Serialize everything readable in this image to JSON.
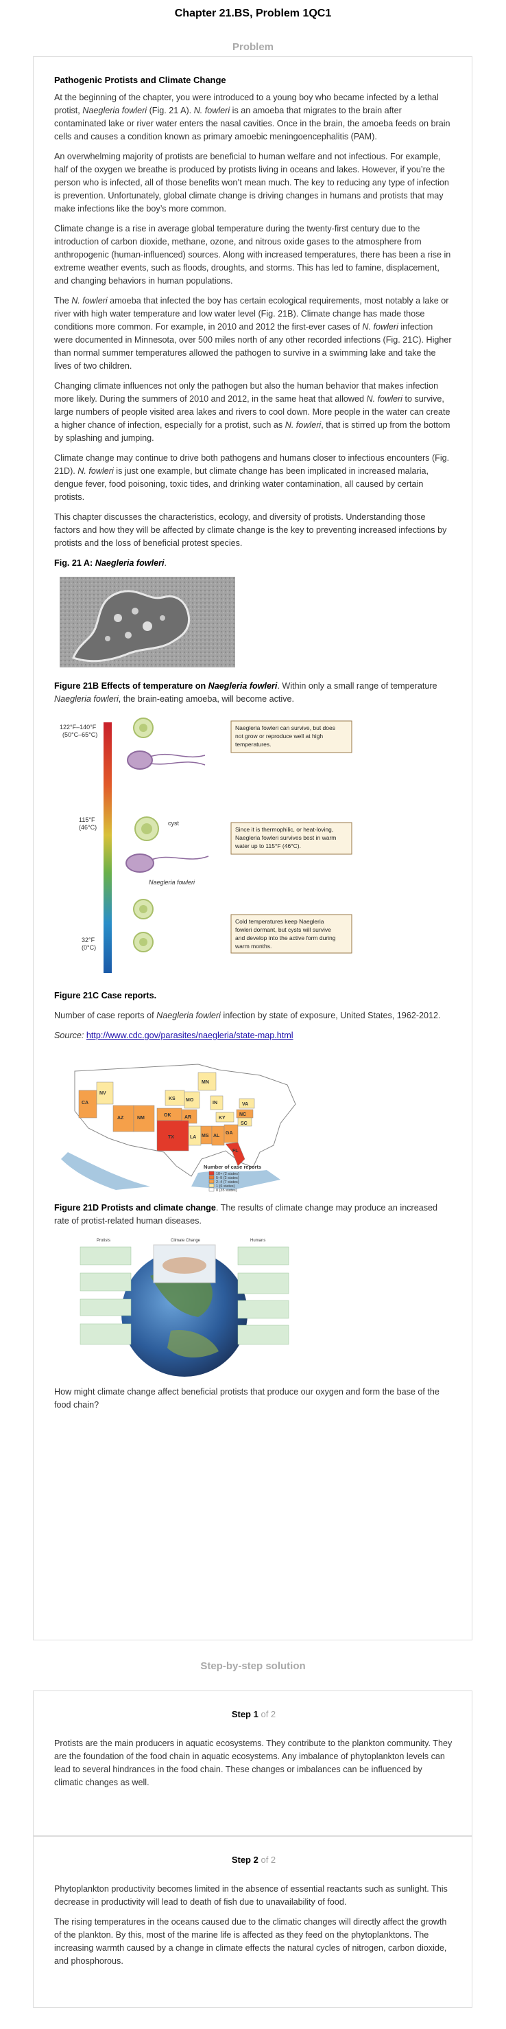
{
  "header": {
    "title": "Chapter 21.BS, Problem 1QC1"
  },
  "problem": {
    "section_label": "Problem",
    "title": "Pathogenic Protists and Climate Change",
    "p1": [
      "At the beginning of the chapter, you were introduced to a young boy who became infected by a lethal protist, ",
      "Naegleria fowleri",
      " (Fig. 21 A). ",
      "N. fowleri",
      " is an amoeba that migrates to the brain after contaminated lake or river water enters the nasal cavities. Once in the brain, the amoeba feeds on brain cells and causes a condition known as primary amoebic meningoencephalitis (PAM)."
    ],
    "p2": "An overwhelming majority of protists are beneficial to human welfare and not infectious. For example, half of the oxygen we breathe is produced by protists living in oceans and lakes. However, if you’re the person who is infected, all of those benefits won’t mean much. The key to reducing any type of infection is prevention. Unfortunately, global climate change is driving changes in humans and protists that may make infections like the boy’s more common.",
    "p3": "Climate change is a rise in average global temperature during the twenty-first century due to the introduction of carbon dioxide, methane, ozone, and nitrous oxide gases to the atmosphere from anthropogenic (human-influenced) sources. Along with increased temperatures, there has been a rise in extreme weather events, such as floods, droughts, and storms. This has led to famine, displacement, and changing behaviors in human populations.",
    "p4": [
      "The ",
      "N. fowleri",
      " amoeba that infected the boy has certain ecological requirements, most notably a lake or river with high water temperature and low water level (Fig. 21B). Climate change has made those conditions more common. For example, in 2010 and 2012 the first-ever cases of ",
      "N. fowleri",
      " infection were documented in Minnesota, over 500 miles north of any other recorded infections (Fig. 21C). Higher than normal summer temperatures allowed the pathogen to survive in a swimming lake and take the lives of two children."
    ],
    "p5": [
      "Changing climate influences not only the pathogen but also the human behavior that makes infection more likely. During the summers of 2010 and 2012, in the same heat that allowed ",
      "N. fowleri",
      " to survive, large numbers of people visited area lakes and rivers to cool down. More people in the water can create a higher chance of infection, especially for a protist, such as ",
      "N. fowleri",
      ", that is stirred up from the bottom by splashing and jumping."
    ],
    "p6": [
      "Climate change may continue to drive both pathogens and humans closer to infectious encounters (Fig. 21D). ",
      "N. fowleri",
      " is just one example, but climate change has been implicated in increased malaria, dengue fever, food poisoning, toxic tides, and drinking water contamination, all caused by certain protists."
    ],
    "p7": "This chapter discusses the characteristics, ecology, and diversity of protists. Understanding those factors and how they will be affected by climate change is the key to preventing increased infections by protists and the loss of beneficial protest species.",
    "figA_caption": [
      "Fig. 21 A: ",
      "Naegleria fowleri",
      "."
    ],
    "figB_caption": [
      "Figure 21B Effects of temperature on ",
      "Naegleria fowleri",
      ". Within only a small range of temperature ",
      "Naegleria fowleri",
      ", the brain-eating amoeba, will become active."
    ],
    "figB": {
      "temp_top": "122°F–140°F",
      "temp_top_c": "(50°C–65°C)",
      "temp_mid": "115°F",
      "temp_mid_c": "(46°C)",
      "temp_low": "32°F",
      "temp_low_c": "(0°C)",
      "label_cyst": "cyst",
      "label_species": "Naegleria fowleri",
      "box1": [
        "Naegleria fowleri can survive, but does",
        "not grow or reproduce well at high",
        "temperatures."
      ],
      "box2": [
        "Since it is thermophilic, or heat-loving,",
        "Naegleria fowleri survives best in warm",
        "water up to 115°F (46°C)."
      ],
      "box3": [
        "Cold temperatures keep Naegleria",
        "fowleri dormant, but cysts will survive",
        "and develop into the active form during",
        "warm months."
      ]
    },
    "figC_title": "Figure 21C Case reports.",
    "figC_caption": [
      "Number of case reports of ",
      "Naegleria fowleri",
      " infection by state of exposure, United States, 1962-2012."
    ],
    "figC_source_label": "Source:",
    "figC_source_link": "http://www.cdc.gov/parasites/naegleria/state-map.html",
    "figC_map": {
      "states": [
        "MN",
        "NV",
        "CA",
        "AZ",
        "NM",
        "KS",
        "MO",
        "IN",
        "VA",
        "NC",
        "SC",
        "OK",
        "AR",
        "KY",
        "TX",
        "LA",
        "MS",
        "AL",
        "GA",
        "FL"
      ],
      "legend_title": "Number of case reports",
      "legend": [
        "10+ (2 states)",
        "5–9 (2 states)",
        "2–4 (7 states)",
        "1 (6 states)",
        "0 (35 states)"
      ]
    },
    "figD_caption": [
      "Figure 21D Protists and climate change",
      ". The results of climate change may produce an increased rate of protist-related human diseases."
    ],
    "figD": {
      "col_left": "Protists",
      "col_mid": "Climate Change",
      "col_right": "Humans"
    },
    "question": "How might climate change affect beneficial protists that produce our oxygen and form the base of the food chain?"
  },
  "solution": {
    "section_label": "Step-by-step solution",
    "steps": [
      {
        "label": "Step 1",
        "of": "of 2",
        "text": "Protists are the main producers in aquatic ecosystems. They contribute to the plankton community. They are the foundation of the food chain in aquatic ecosystems. Any imbalance of phytoplankton levels can lead to several hindrances in the food chain. These changes or imbalances can be influenced by climatic changes as well."
      },
      {
        "label": "Step 2",
        "of": "of 2",
        "text1": "Phytoplankton productivity becomes limited in the absence of essential reactants such as sunlight. This decrease in productivity will lead to death of fish due to unavailability of food.",
        "text2": "The rising temperatures in the oceans caused due to the climatic changes will directly affect the growth of the plankton. By this, most of the marine life is affected as they feed on the phytoplanktons. The increasing warmth caused by a change in climate effects the natural cycles of nitrogen, carbon dioxide, and phosphorous."
      }
    ]
  },
  "colors": {
    "link": "#1a0dab",
    "border": "#dcdcdc",
    "muted": "#a9a9a9"
  }
}
